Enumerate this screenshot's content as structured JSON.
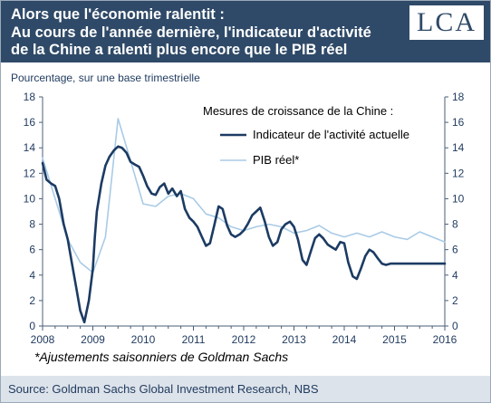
{
  "header": {
    "title_lines": [
      "Alors que l'économie ralentit :",
      "Au cours de l'année dernière, l'indicateur d'activité",
      "de la Chine a ralenti plus encore que le PIB réel"
    ],
    "logo": "LCA"
  },
  "footnote": "*Ajustements saisonniers de Goldman Sachs",
  "source": "Source: Goldman Sachs Global Investment Research, NBS",
  "colors": {
    "header_bg": "#2f4a68",
    "series_activity": "#1c3b63",
    "series_gdp": "#a9cbe6",
    "axis_text": "#1f3a5f"
  },
  "chart_data": {
    "type": "line",
    "ylabel": "Pourcentage, sur une base trimestrielle",
    "ylim": [
      0,
      18
    ],
    "y_ticks": [
      0,
      2,
      4,
      6,
      8,
      10,
      12,
      14,
      16,
      18
    ],
    "xlim": [
      2008,
      2016
    ],
    "x_ticks": [
      "2008",
      "2009",
      "2010",
      "2011",
      "2012",
      "2013",
      "2014",
      "2015",
      "2016"
    ],
    "grid": false,
    "legend_title": "Mesures de croissance de la Chine :",
    "legend_position": "top-right",
    "series": [
      {
        "name": "Indicateur de l'activité actuelle",
        "x": [
          2008.0,
          2008.08,
          2008.17,
          2008.25,
          2008.33,
          2008.42,
          2008.5,
          2008.58,
          2008.67,
          2008.75,
          2008.83,
          2008.92,
          2009.0,
          2009.04,
          2009.08,
          2009.17,
          2009.25,
          2009.33,
          2009.42,
          2009.5,
          2009.58,
          2009.67,
          2009.75,
          2009.83,
          2009.92,
          2010.0,
          2010.08,
          2010.17,
          2010.25,
          2010.33,
          2010.42,
          2010.5,
          2010.58,
          2010.67,
          2010.75,
          2010.83,
          2010.92,
          2011.0,
          2011.08,
          2011.17,
          2011.25,
          2011.33,
          2011.42,
          2011.5,
          2011.58,
          2011.67,
          2011.75,
          2011.83,
          2011.92,
          2012.0,
          2012.08,
          2012.17,
          2012.25,
          2012.33,
          2012.42,
          2012.5,
          2012.58,
          2012.67,
          2012.75,
          2012.83,
          2012.92,
          2013.0,
          2013.08,
          2013.17,
          2013.25,
          2013.33,
          2013.42,
          2013.5,
          2013.58,
          2013.67,
          2013.75,
          2013.83,
          2013.92,
          2014.0,
          2014.08,
          2014.17,
          2014.25,
          2014.33,
          2014.42,
          2014.5,
          2014.58,
          2014.67,
          2014.75,
          2014.83,
          2014.92,
          2015.0,
          2015.08,
          2015.17,
          2015.25,
          2015.33,
          2015.42,
          2015.5,
          2015.58,
          2015.67,
          2015.75,
          2015.83,
          2015.92,
          2016.0
        ],
        "values": [
          12.8,
          11.5,
          11.2,
          11.0,
          10.0,
          8.0,
          6.8,
          5.0,
          3.0,
          1.2,
          0.3,
          2.0,
          4.5,
          7.0,
          9.0,
          11.2,
          12.6,
          13.3,
          13.8,
          14.1,
          14.0,
          13.6,
          12.9,
          12.7,
          12.5,
          11.8,
          11.0,
          10.4,
          10.3,
          10.9,
          11.2,
          10.4,
          10.8,
          10.2,
          10.6,
          9.2,
          8.5,
          8.2,
          7.8,
          7.0,
          6.3,
          6.5,
          8.0,
          9.4,
          9.2,
          7.9,
          7.2,
          7.0,
          7.2,
          7.5,
          8.0,
          8.7,
          9.0,
          9.3,
          8.2,
          7.0,
          6.3,
          6.6,
          7.6,
          8.0,
          8.2,
          7.8,
          6.8,
          5.2,
          4.8,
          5.8,
          6.9,
          7.2,
          6.9,
          6.4,
          6.2,
          6.0,
          6.6,
          6.5,
          5.0,
          3.9,
          3.7,
          4.5,
          5.5,
          6.0,
          5.8,
          5.3,
          4.9,
          4.8,
          4.9,
          4.9,
          4.9,
          4.9,
          4.9,
          4.9,
          4.9,
          4.9,
          4.9,
          4.9,
          4.9,
          4.9,
          4.9,
          4.9
        ]
      },
      {
        "name": "PIB réel*",
        "x": [
          2008.0,
          2008.25,
          2008.5,
          2008.75,
          2009.0,
          2009.25,
          2009.5,
          2009.75,
          2010.0,
          2010.25,
          2010.5,
          2010.75,
          2011.0,
          2011.25,
          2011.5,
          2011.75,
          2012.0,
          2012.25,
          2012.5,
          2012.75,
          2013.0,
          2013.25,
          2013.5,
          2013.75,
          2014.0,
          2014.25,
          2014.5,
          2014.75,
          2015.0,
          2015.25,
          2015.5,
          2015.75,
          2016.0
        ],
        "values": [
          13.2,
          10.0,
          6.8,
          5.0,
          4.2,
          7.0,
          16.3,
          13.0,
          9.6,
          9.4,
          10.2,
          10.4,
          10.0,
          8.8,
          8.5,
          7.8,
          7.5,
          7.8,
          8.0,
          7.8,
          7.3,
          7.5,
          7.9,
          7.3,
          7.0,
          7.3,
          7.0,
          7.4,
          7.0,
          6.8,
          7.4,
          7.0,
          6.6
        ]
      }
    ]
  }
}
